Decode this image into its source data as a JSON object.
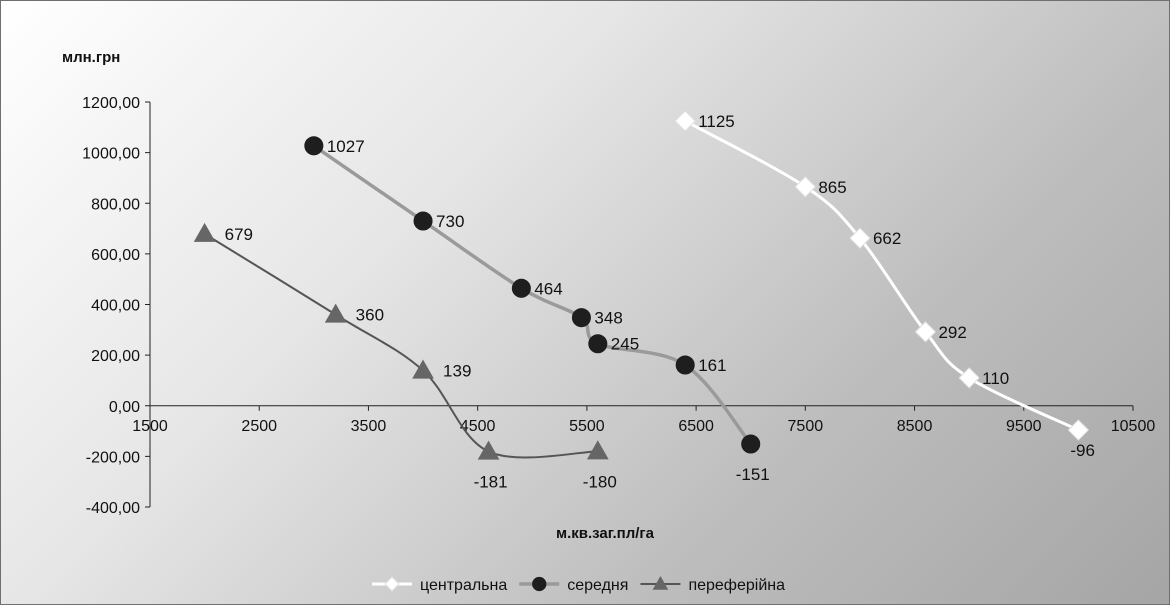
{
  "chart_data": {
    "type": "line",
    "title": "",
    "ylabel": "млн.грн",
    "xlabel": "м.кв.заг.пл/га",
    "xlim": [
      1500,
      10500
    ],
    "ylim": [
      -400,
      1200
    ],
    "x_ticks": [
      "1500",
      "2500",
      "3500",
      "4500",
      "5500",
      "6500",
      "7500",
      "8500",
      "9500",
      "10500"
    ],
    "y_ticks": [
      "1200,00",
      "1000,00",
      "800,00",
      "600,00",
      "400,00",
      "200,00",
      "0,00",
      "-200,00",
      "-400,00"
    ],
    "legend_position": "bottom",
    "series": [
      {
        "name": "центральна",
        "color": "#ffffff",
        "marker": "diamond",
        "x": [
          6400,
          7500,
          8000,
          8600,
          9000,
          10000
        ],
        "y": [
          1125,
          865,
          662,
          292,
          110,
          -96
        ],
        "labels": [
          "1125",
          "865",
          "662",
          "292",
          "110",
          "-96"
        ]
      },
      {
        "name": "середня",
        "color": "#9a9a9a",
        "marker": "circle",
        "x": [
          3000,
          4000,
          4900,
          5450,
          5600,
          6400,
          7000
        ],
        "y": [
          1027,
          730,
          464,
          348,
          245,
          161,
          -151
        ],
        "labels": [
          "1027",
          "730",
          "464",
          "348",
          "245",
          "161",
          "-151"
        ]
      },
      {
        "name": "переферійна",
        "color": "#555555",
        "marker": "triangle",
        "x": [
          2000,
          3200,
          4000,
          4600,
          5600
        ],
        "y": [
          679,
          360,
          139,
          -181,
          -180
        ],
        "labels": [
          "679",
          "360",
          "139",
          "-181",
          "-180"
        ]
      }
    ]
  }
}
